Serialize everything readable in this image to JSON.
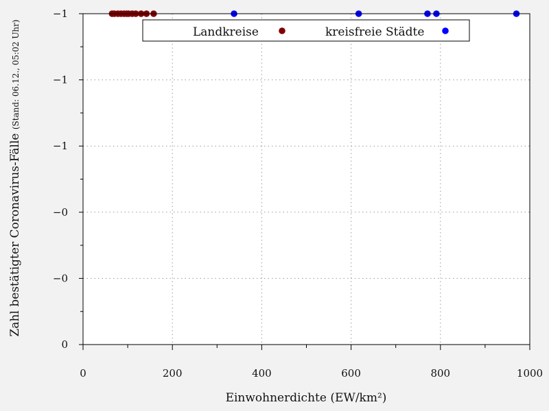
{
  "chart_data": {
    "type": "scatter",
    "xlabel": "Einwohnerdichte (EW/km²)",
    "ylabel": "Zahl bestätigter Coronavirus-Fälle",
    "ylabel_note": "(Stand: 06.12., 05:02 Uhr)",
    "xlim": [
      0,
      1000
    ],
    "ylim": [
      0,
      1
    ],
    "x_ticks": [
      0,
      200,
      400,
      600,
      800,
      1000
    ],
    "y_ticks": [
      0,
      0.2,
      0.4,
      0.6,
      0.8,
      1.0
    ],
    "y_tick_labels": [
      "0",
      "−0",
      "−0",
      "−1",
      "−1",
      "−1"
    ],
    "grid": true,
    "legend_position": "top",
    "series": [
      {
        "name": "Landkreise",
        "color": "#7f0000",
        "points": [
          {
            "x": 65,
            "y": 1
          },
          {
            "x": 70,
            "y": 1
          },
          {
            "x": 78,
            "y": 1
          },
          {
            "x": 85,
            "y": 1
          },
          {
            "x": 92,
            "y": 1
          },
          {
            "x": 98,
            "y": 1
          },
          {
            "x": 102,
            "y": 1
          },
          {
            "x": 110,
            "y": 1
          },
          {
            "x": 118,
            "y": 1
          },
          {
            "x": 130,
            "y": 1
          },
          {
            "x": 142,
            "y": 1
          },
          {
            "x": 158,
            "y": 1
          }
        ]
      },
      {
        "name": "kreisfreie Städte",
        "color": "#0000ff",
        "points": [
          {
            "x": 338,
            "y": 1
          },
          {
            "x": 617,
            "y": 1
          },
          {
            "x": 771,
            "y": 1
          },
          {
            "x": 791,
            "y": 1
          },
          {
            "x": 970,
            "y": 1
          }
        ]
      }
    ]
  }
}
